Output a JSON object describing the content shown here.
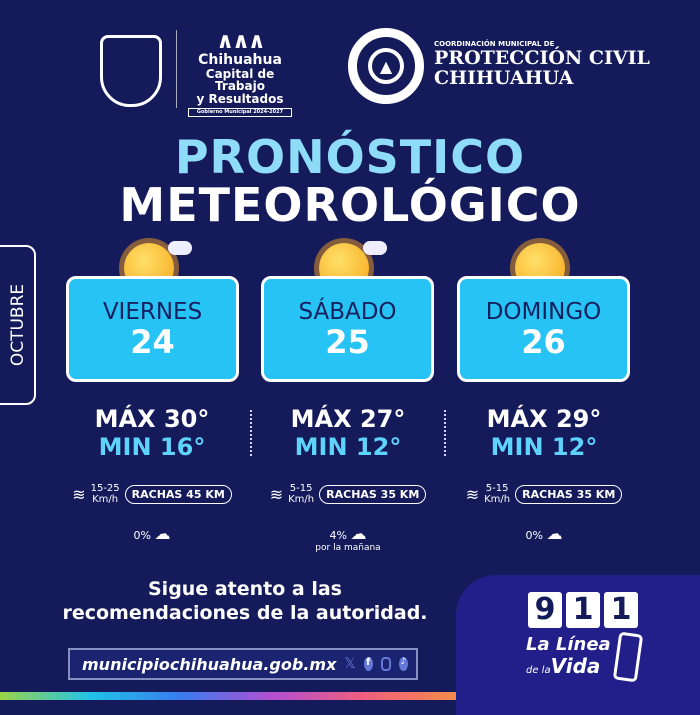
{
  "header": {
    "municipal_logo": {
      "line1": "Chihuahua",
      "line2": "Capital de Trabajo",
      "line3": "y Resultados",
      "tagline": "Gobierno Municipal 2024-2027"
    },
    "pc_logo": {
      "kicker": "COORDINACIÓN MUNICIPAL DE",
      "line1": "PROTECCIÓN CIVIL",
      "line2": "CHIHUAHUA"
    }
  },
  "title": {
    "line1": "PRONÓSTICO",
    "line2": "METEOROLÓGICO"
  },
  "month": "OCTUBRE",
  "days": [
    {
      "day": "VIERNES",
      "date": "24",
      "icon": "sun-cloud-icon",
      "max": "MÁX 30°",
      "min": "MIN 16°",
      "wind": "15-25",
      "wind_unit": "Km/h",
      "gusts": "RACHAS 45 KM",
      "rain": "0%",
      "rain_note": ""
    },
    {
      "day": "SÁBADO",
      "date": "25",
      "icon": "sun-cloud-icon",
      "max": "MÁX 27°",
      "min": "MIN 12°",
      "wind": "5-15",
      "wind_unit": "Km/h",
      "gusts": "RACHAS 35 KM",
      "rain": "4%",
      "rain_note": "por la mañana"
    },
    {
      "day": "DOMINGO",
      "date": "26",
      "icon": "sun-icon",
      "max": "MÁX 29°",
      "min": "MIN 12°",
      "wind": "5-15",
      "wind_unit": "Km/h",
      "gusts": "RACHAS 35 KM",
      "rain": "0%",
      "rain_note": ""
    }
  ],
  "footer": {
    "message_line1": "Sigue atento a las",
    "message_line2": "recomendaciones de la autoridad.",
    "url": "municipiochihuahua.gob.mx",
    "social": [
      "x-icon",
      "facebook-icon",
      "instagram-icon",
      "tiktok-icon"
    ],
    "emergency": {
      "digits": [
        "9",
        "1",
        "1"
      ],
      "line1": "La Línea",
      "line2_small": "de la",
      "line2": "Vida"
    }
  },
  "colors": {
    "background": "#141a5a",
    "card": "#27c3f5",
    "accent": "#5ed3fb"
  }
}
